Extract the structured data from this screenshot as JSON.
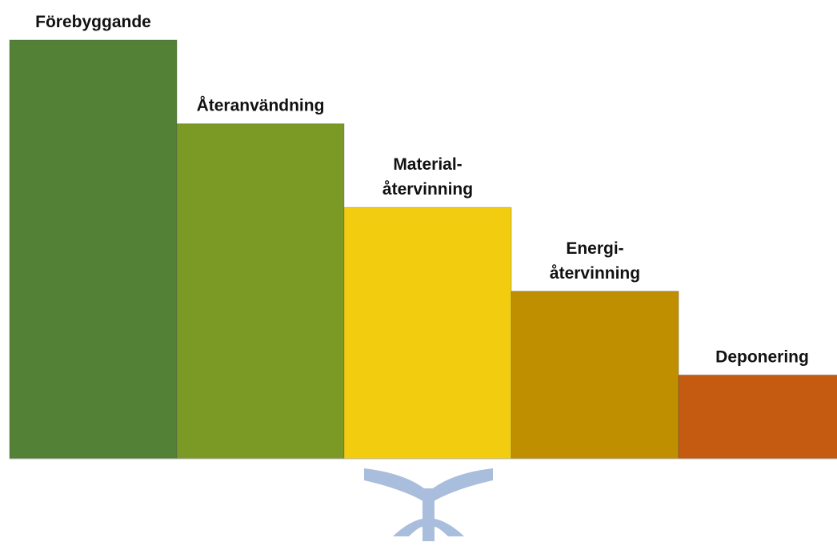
{
  "chart_data": {
    "type": "bar",
    "categories": [
      [
        "Förebyggande"
      ],
      [
        "Återanvändning"
      ],
      [
        "Material-",
        "återvinning"
      ],
      [
        "Energi-",
        "återvinning"
      ],
      [
        "Deponering"
      ]
    ],
    "values": [
      5,
      4,
      3,
      2,
      1
    ],
    "colors": [
      "#538135",
      "#7a9a25",
      "#f2cd0f",
      "#bf8f00",
      "#c55a11"
    ],
    "title": "",
    "xlabel": "",
    "ylabel": "",
    "ylim": [
      0,
      5
    ],
    "grid": false,
    "legend": "none"
  },
  "logo": {
    "icon": "sprout-icon",
    "color": "#a9bddc"
  }
}
